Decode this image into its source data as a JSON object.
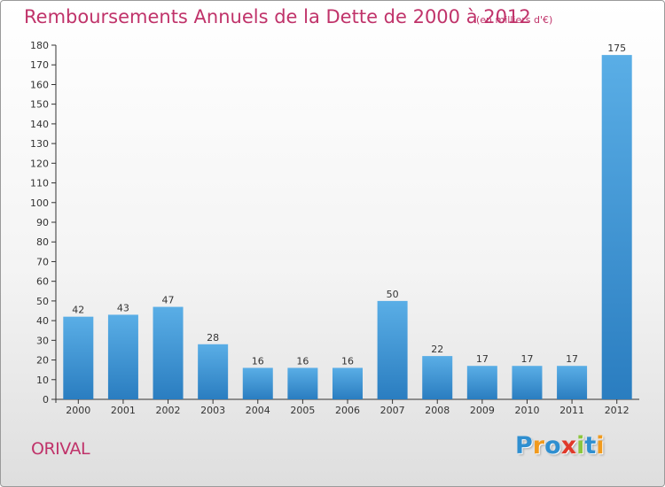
{
  "page": {
    "title": "Remboursements Annuels de la Dette de 2000 à 2012",
    "subtitle": "(en milliers d'€)",
    "commune": "ORIVAL",
    "logo": {
      "text": "Proxiti",
      "letters": [
        {
          "ch": "P",
          "color": "#2f8fd0"
        },
        {
          "ch": "r",
          "color": "#f19a1d"
        },
        {
          "ch": "o",
          "color": "#2f8fd0"
        },
        {
          "ch": "x",
          "color": "#e0392a"
        },
        {
          "ch": "i",
          "color": "#8cc63f"
        },
        {
          "ch": "t",
          "color": "#2f8fd0"
        },
        {
          "ch": "i",
          "color": "#f19a1d"
        }
      ]
    }
  },
  "chart_data": {
    "type": "bar",
    "title": "Remboursements Annuels de la Dette de 2000 à 2012",
    "subtitle": "(en milliers d'€)",
    "categories": [
      "2000",
      "2001",
      "2002",
      "2003",
      "2004",
      "2005",
      "2006",
      "2007",
      "2008",
      "2009",
      "2010",
      "2011",
      "2012"
    ],
    "values": [
      42,
      43,
      47,
      28,
      16,
      16,
      16,
      50,
      22,
      17,
      17,
      17,
      175
    ],
    "ylim": [
      0,
      180
    ],
    "ytick_step": 10,
    "grid": false,
    "legend": "none",
    "colors": {
      "bar_light": "#5aaee6",
      "bar_dark": "#2a7dc0",
      "axis": "#333333",
      "text": "#333333",
      "accent": "#c0336a"
    }
  }
}
